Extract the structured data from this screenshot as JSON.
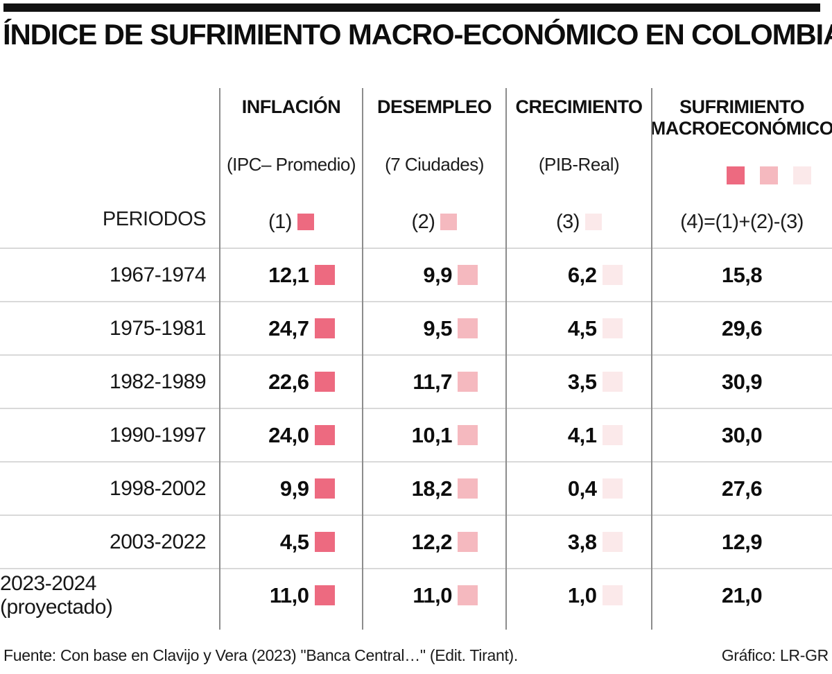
{
  "title": "ÍNDICE DE SUFRIMIENTO MACRO-ECONÓMICO EN COLOMBIA",
  "colors": {
    "inflacion_square": "#ed6a80",
    "desempleo_square": "#f5b9bf",
    "crecimiento_square": "#fbe9ea",
    "top_bar": "#121212",
    "vertical_rule": "#8c8c8c",
    "horizontal_rule": "#d9d9d9"
  },
  "table": {
    "periods_label": "PERIODOS",
    "columns": [
      {
        "title": "INFLACIÓN",
        "subtitle": "(IPC– Promedio)",
        "index_label": "(1)",
        "square_color": "#ed6a80"
      },
      {
        "title": "DESEMPLEO",
        "subtitle": "(7 Ciudades)",
        "index_label": "(2)",
        "square_color": "#f5b9bf"
      },
      {
        "title": "CRECIMIENTO",
        "subtitle": "(PIB-Real)",
        "index_label": "(3)",
        "square_color": "#fbe9ea"
      },
      {
        "title": "SUFRIMIENTO MACROECONÓMICO",
        "formula": "(4)=(1)+(2)-(3)"
      }
    ],
    "rows": [
      {
        "period": "1967-1974",
        "inflacion": "12,1",
        "desempleo": "9,9",
        "crecimiento": "6,2",
        "sufrimiento": "15,8"
      },
      {
        "period": "1975-1981",
        "inflacion": "24,7",
        "desempleo": "9,5",
        "crecimiento": "4,5",
        "sufrimiento": "29,6"
      },
      {
        "period": "1982-1989",
        "inflacion": "22,6",
        "desempleo": "11,7",
        "crecimiento": "3,5",
        "sufrimiento": "30,9"
      },
      {
        "period": "1990-1997",
        "inflacion": "24,0",
        "desempleo": "10,1",
        "crecimiento": "4,1",
        "sufrimiento": "30,0"
      },
      {
        "period": "1998-2002",
        "inflacion": "9,9",
        "desempleo": "18,2",
        "crecimiento": "0,4",
        "sufrimiento": "27,6"
      },
      {
        "period": "2003-2022",
        "inflacion": "4,5",
        "desempleo": "12,2",
        "crecimiento": "3,8",
        "sufrimiento": "12,9"
      },
      {
        "period": "2023-2024 (proyectado)",
        "inflacion": "11,0",
        "desempleo": "11,0",
        "crecimiento": "1,0",
        "sufrimiento": "21,0"
      }
    ]
  },
  "footer": {
    "source": "Fuente: Con base en Clavijo y Vera (2023) \"Banca Central…\" (Edit. Tirant).",
    "credit": "Gráfico: LR-GR"
  },
  "chart_data": {
    "type": "table",
    "title": "ÍNDICE DE SUFRIMIENTO MACRO-ECONÓMICO EN COLOMBIA",
    "columns": [
      "PERIODOS",
      "INFLACIÓN (IPC– Promedio) (1)",
      "DESEMPLEO (7 Ciudades) (2)",
      "CRECIMIENTO (PIB-Real) (3)",
      "SUFRIMIENTO MACROECONÓMICO (4)=(1)+(2)-(3)"
    ],
    "rows": [
      [
        "1967-1974",
        12.1,
        9.9,
        6.2,
        15.8
      ],
      [
        "1975-1981",
        24.7,
        9.5,
        4.5,
        29.6
      ],
      [
        "1982-1989",
        22.6,
        11.7,
        3.5,
        30.9
      ],
      [
        "1990-1997",
        24.0,
        10.1,
        4.1,
        30.0
      ],
      [
        "1998-2002",
        9.9,
        18.2,
        0.4,
        27.6
      ],
      [
        "2003-2022",
        4.5,
        12.2,
        3.8,
        12.9
      ],
      [
        "2023-2024 (proyectado)",
        11.0,
        11.0,
        1.0,
        21.0
      ]
    ]
  }
}
